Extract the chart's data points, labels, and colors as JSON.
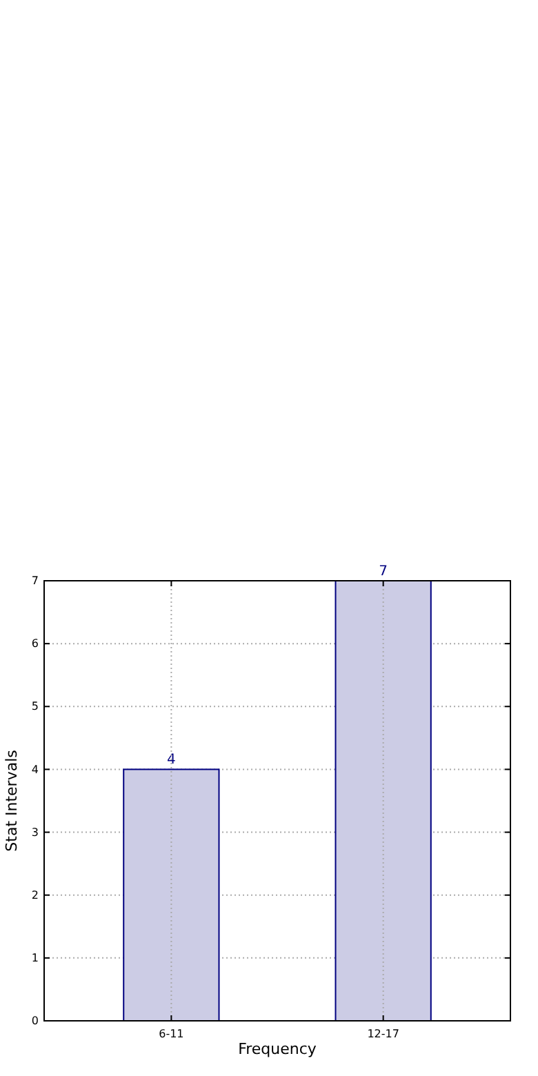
{
  "chart_data": {
    "type": "bar",
    "xlabel": "Frequency",
    "ylabel": "Stat Intervals",
    "categories": [
      "6-11",
      "12-17"
    ],
    "values": [
      4,
      7
    ],
    "color": "#ccccE5",
    "ylim": [
      0,
      7
    ],
    "yticks": [
      0,
      1,
      2,
      3,
      4,
      5,
      6,
      7
    ],
    "grid": true,
    "data_labels": true
  }
}
